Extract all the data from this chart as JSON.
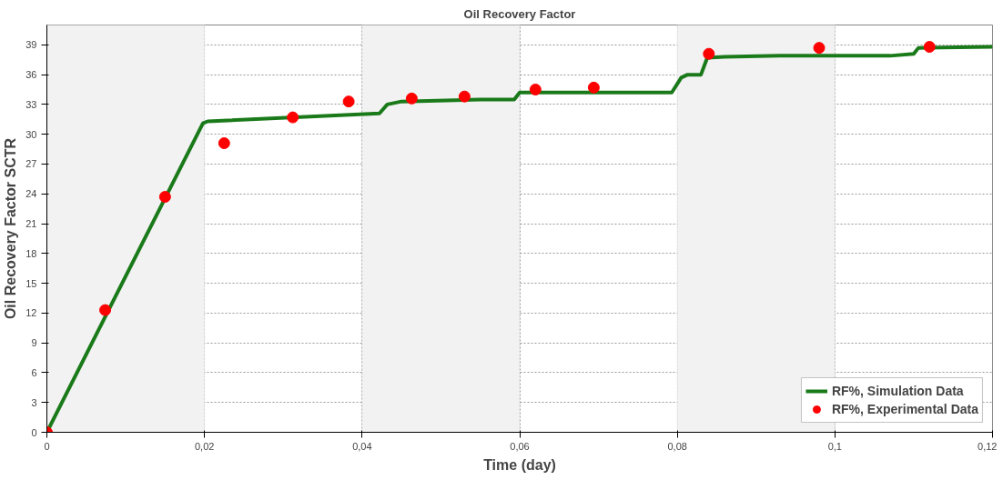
{
  "chart_data": {
    "type": "line",
    "title": "Oil Recovery Factor",
    "xlabel": "Time (day)",
    "ylabel": "Oil Recovery Factor SCTR",
    "xlim": [
      0,
      0.12
    ],
    "ylim": [
      0,
      41
    ],
    "xticks": [
      0,
      {
        "value": 0.02,
        "label": "0,02"
      },
      {
        "value": 0.04,
        "label": "0,04"
      },
      {
        "value": 0.06,
        "label": "0,06"
      },
      {
        "value": 0.08,
        "label": "0,08"
      },
      {
        "value": 0.1,
        "label": "0,1"
      },
      {
        "value": 0.12,
        "label": "0,12"
      }
    ],
    "yticks": [
      0,
      3,
      6,
      9,
      12,
      15,
      18,
      21,
      24,
      27,
      30,
      33,
      36,
      39
    ],
    "grid": true,
    "legend": "bottom right",
    "bands": [
      {
        "axis": "x",
        "from": 0,
        "to": 0.02,
        "color": "#f2f2f2"
      },
      {
        "axis": "x",
        "from": 0.04,
        "to": 0.06,
        "color": "#f2f2f2"
      },
      {
        "axis": "x",
        "from": 0.08,
        "to": 0.1,
        "color": "#f2f2f2"
      }
    ],
    "series": [
      {
        "name": "RF%, Simulation Data",
        "color": "#1a7a1a",
        "marker": "none",
        "line_style": "solid",
        "x": [
          0,
          0.0198,
          0.0204,
          0.0422,
          0.0432,
          0.045,
          0.055,
          0.0593,
          0.06,
          0.0793,
          0.0805,
          0.0813,
          0.083,
          0.0838,
          0.086,
          0.093,
          0.107,
          0.11,
          0.1106,
          0.12
        ],
        "values": [
          0,
          31.1,
          31.3,
          32.1,
          33.0,
          33.3,
          33.5,
          33.5,
          34.2,
          34.2,
          35.7,
          36.0,
          36.0,
          37.7,
          37.8,
          37.9,
          37.9,
          38.1,
          38.7,
          38.8
        ]
      },
      {
        "name": "RF%, Experimental Data",
        "type": "scatter",
        "color": "#ff0000",
        "marker": "circle",
        "x": [
          0,
          0.0074,
          0.015,
          0.0225,
          0.0312,
          0.0383,
          0.0463,
          0.053,
          0.062,
          0.0694,
          0.084,
          0.098,
          0.112
        ],
        "values": [
          0,
          12.3,
          23.7,
          29.1,
          31.7,
          33.3,
          33.6,
          33.8,
          34.5,
          34.7,
          38.1,
          38.7,
          38.8
        ]
      }
    ]
  }
}
